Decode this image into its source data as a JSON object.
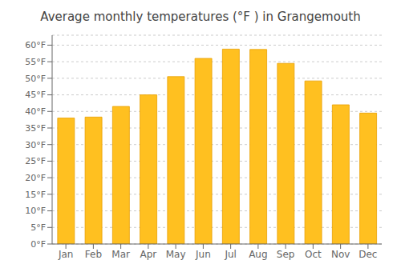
{
  "chart_data": {
    "type": "bar",
    "title": "Average monthly temperatures (°F ) in Grangemouth",
    "categories": [
      "Jan",
      "Feb",
      "Mar",
      "Apr",
      "May",
      "Jun",
      "Jul",
      "Aug",
      "Sep",
      "Oct",
      "Nov",
      "Dec"
    ],
    "values": [
      38.0,
      38.3,
      41.5,
      45.0,
      50.5,
      56.0,
      58.8,
      58.7,
      54.5,
      49.2,
      42.0,
      39.5
    ],
    "color": "#FFC020",
    "ylim": [
      0,
      63
    ],
    "yticks": [
      {
        "value": 0,
        "label": "0°F"
      },
      {
        "value": 5,
        "label": "5°F"
      },
      {
        "value": 10,
        "label": "10°F"
      },
      {
        "value": 15,
        "label": "15°F"
      },
      {
        "value": 20,
        "label": "20°F"
      },
      {
        "value": 25,
        "label": "25°F"
      },
      {
        "value": 30,
        "label": "30°F"
      },
      {
        "value": 35,
        "label": "35°F"
      },
      {
        "value": 40,
        "label": "40°F"
      },
      {
        "value": 45,
        "label": "45°F"
      },
      {
        "value": 50,
        "label": "50°F"
      },
      {
        "value": 55,
        "label": "55°F"
      },
      {
        "value": 60,
        "label": "60°F"
      }
    ],
    "grid": true
  }
}
